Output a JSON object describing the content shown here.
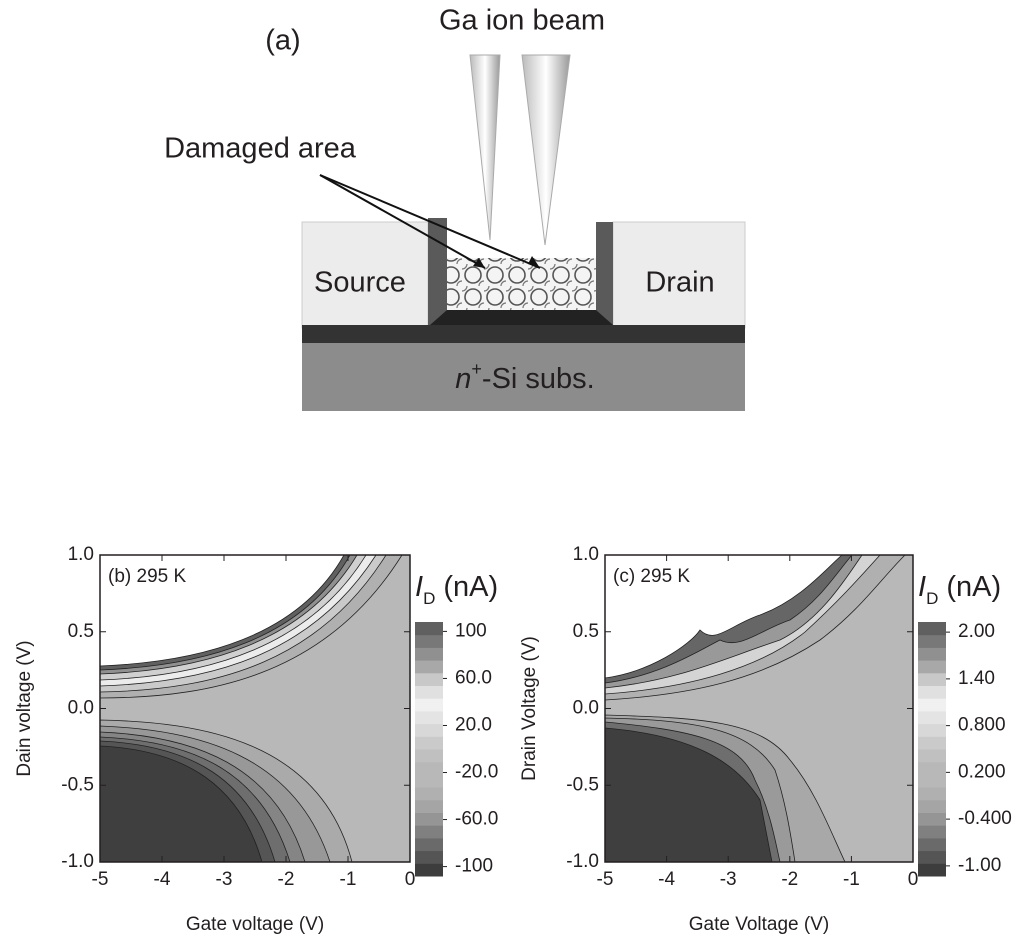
{
  "diagram": {
    "panel_label": "(a)",
    "beam_label": "Ga ion beam",
    "damage_label": "Damaged area",
    "source_label": "Source",
    "drain_label": "Drain",
    "substrate_label": {
      "symbol": "n",
      "superscript": "+",
      "text": "-Si subs."
    }
  },
  "chart_data": [
    {
      "type": "contour",
      "panel_label": "(b) 295 K",
      "xlabel": "Gate voltage (V)",
      "ylabel": "Dain voltage (V)",
      "xlim": [
        -5,
        0
      ],
      "xticks": [
        -5,
        -4,
        -3,
        -2,
        -1,
        0
      ],
      "ylim": [
        -1,
        1
      ],
      "yticks": [
        {
          "value": -1,
          "label": "-1.0"
        },
        {
          "value": -0.5,
          "label": "-0.5"
        },
        {
          "value": 0,
          "label": "0.0"
        },
        {
          "value": 0.5,
          "label": "0.5"
        },
        {
          "value": 1,
          "label": "1.0"
        }
      ],
      "colorbar_title": {
        "symbol": "I",
        "subscript": "D",
        "unit": "(nA)"
      },
      "colorbar_lim": [
        -108,
        108
      ],
      "colorbar_ticks": [
        {
          "value": -100,
          "label": "-100"
        },
        {
          "value": -60,
          "label": "-60.0"
        },
        {
          "value": -20,
          "label": "-20.0"
        },
        {
          "value": 20,
          "label": "20.0"
        },
        {
          "value": 60,
          "label": "60.0"
        },
        {
          "value": 100,
          "label": "100"
        }
      ],
      "colors": [
        "#3d3d3d",
        "#555555",
        "#6a6a6a",
        "#808080",
        "#959595",
        "#a5a5a5",
        "#b0b0b0",
        "#b8b8b8",
        "#b8b8b8",
        "#c0c0c0",
        "#cacaca",
        "#d8d8d8",
        "#e4e4e4",
        "#f0f0f0",
        "#e0e0e0",
        "#c8c8c8",
        "#a8a8a8",
        "#909090",
        "#787878",
        "#606060"
      ]
    },
    {
      "type": "contour",
      "panel_label": "(c) 295 K",
      "xlabel": "Gate Voltage (V)",
      "ylabel": "Drain Voltage (V)",
      "xlim": [
        -5,
        0
      ],
      "xticks": [
        -5,
        -4,
        -3,
        -2,
        -1,
        0
      ],
      "ylim": [
        -1,
        1
      ],
      "yticks": [
        {
          "value": -1,
          "label": "-1.0"
        },
        {
          "value": -0.5,
          "label": "-0.5"
        },
        {
          "value": 0,
          "label": "0.0"
        },
        {
          "value": 0.5,
          "label": "0.5"
        },
        {
          "value": 1,
          "label": "1.0"
        }
      ],
      "colorbar_title": {
        "symbol": "I",
        "subscript": "D",
        "unit": "(nA)"
      },
      "colorbar_lim": [
        -1.13,
        2.13
      ],
      "colorbar_ticks": [
        {
          "value": -1,
          "label": "-1.00"
        },
        {
          "value": -0.4,
          "label": "-0.400"
        },
        {
          "value": 0.2,
          "label": "0.200"
        },
        {
          "value": 0.8,
          "label": "0.800"
        },
        {
          "value": 1.4,
          "label": "1.40"
        },
        {
          "value": 2,
          "label": "2.00"
        }
      ],
      "colors": [
        "#3d3d3d",
        "#555555",
        "#6a6a6a",
        "#808080",
        "#959595",
        "#a5a5a5",
        "#b0b0b0",
        "#b8b8b8",
        "#b8b8b8",
        "#c0c0c0",
        "#cacaca",
        "#d8d8d8",
        "#e4e4e4",
        "#f0f0f0",
        "#e0e0e0",
        "#c8c8c8",
        "#a8a8a8",
        "#909090",
        "#787878",
        "#606060"
      ]
    }
  ]
}
